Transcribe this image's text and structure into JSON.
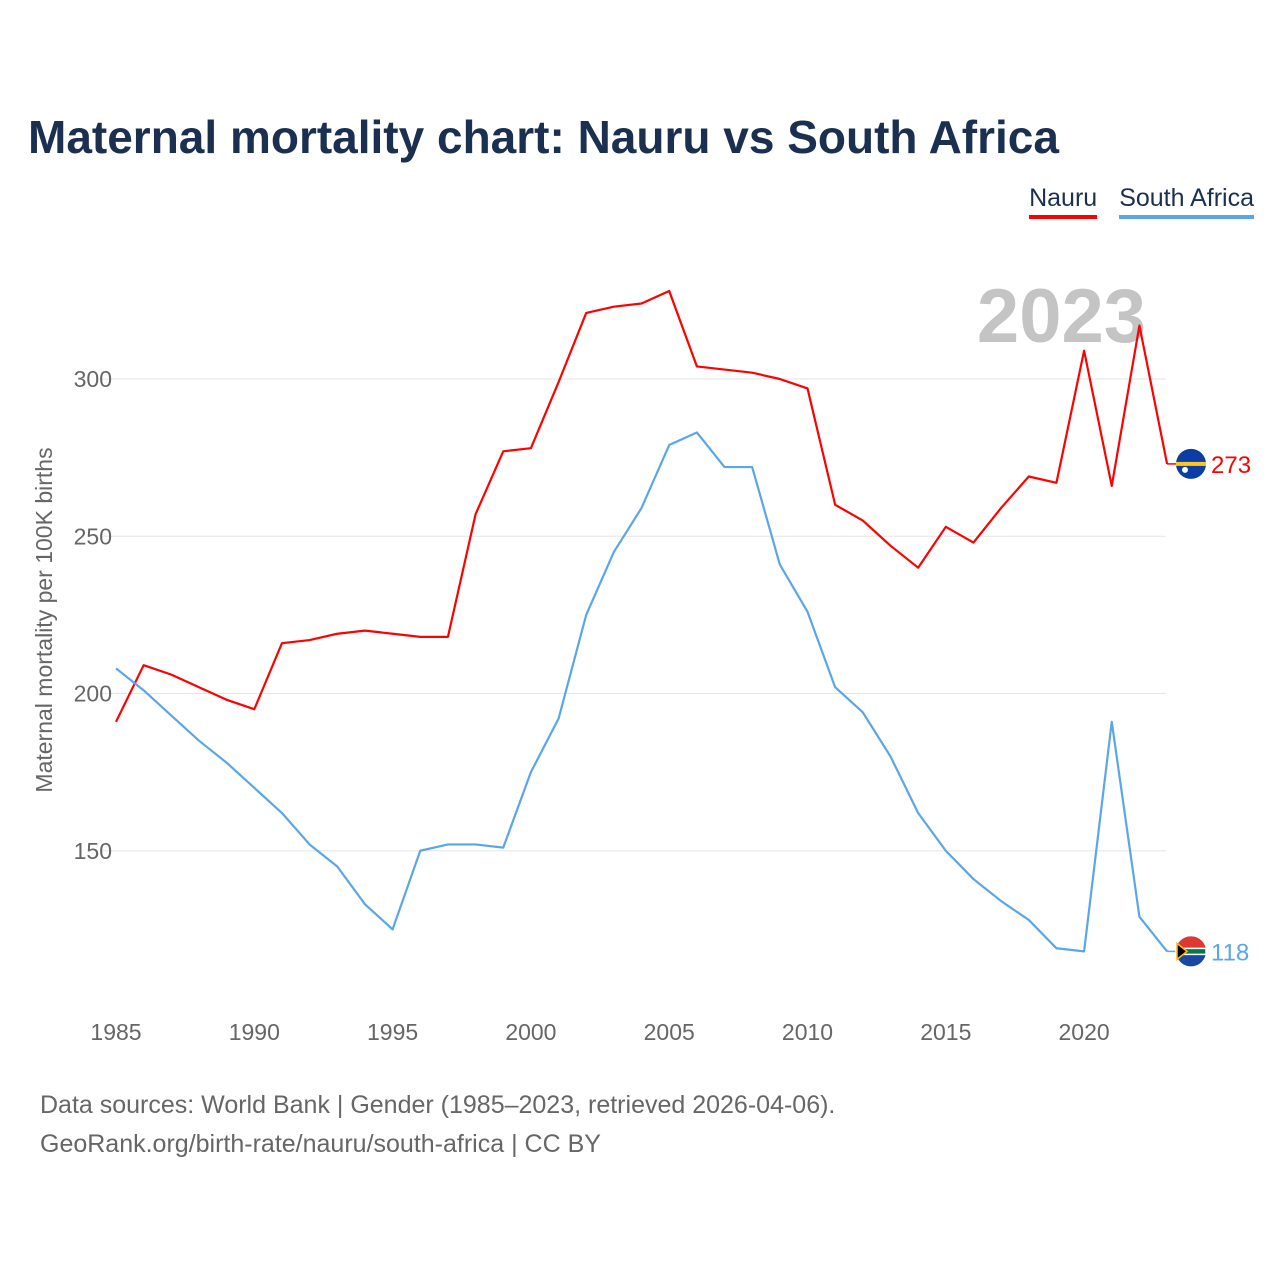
{
  "chart_data": {
    "type": "line",
    "title": "Maternal mortality chart: Nauru vs South Africa",
    "ylabel": "Maternal mortality per 100K births",
    "xlabel": "",
    "year_label": "2023",
    "x": [
      1985,
      1986,
      1987,
      1988,
      1989,
      1990,
      1991,
      1992,
      1993,
      1994,
      1995,
      1996,
      1997,
      1998,
      1999,
      2000,
      2001,
      2002,
      2003,
      2004,
      2005,
      2006,
      2007,
      2008,
      2009,
      2010,
      2011,
      2012,
      2013,
      2014,
      2015,
      2016,
      2017,
      2018,
      2019,
      2020,
      2021,
      2022,
      2023
    ],
    "series": [
      {
        "name": "Nauru",
        "color": "#ff0000",
        "end_label": "273",
        "values": [
          191,
          209,
          206,
          202,
          198,
          195,
          216,
          217,
          219,
          220,
          219,
          218,
          218,
          257,
          277,
          278,
          299,
          321,
          323,
          324,
          328,
          304,
          303,
          302,
          300,
          297,
          260,
          255,
          247,
          240,
          253,
          248,
          259,
          269,
          267,
          309,
          266,
          317,
          273
        ]
      },
      {
        "name": "South Africa",
        "color": "#5aa6e8",
        "end_label": "118",
        "values": [
          208,
          201,
          193,
          185,
          178,
          170,
          162,
          152,
          145,
          133,
          125,
          150,
          152,
          152,
          151,
          175,
          192,
          225,
          245,
          259,
          279,
          283,
          272,
          272,
          241,
          226,
          202,
          194,
          180,
          162,
          150,
          141,
          134,
          128,
          119,
          118,
          191,
          129,
          118
        ]
      }
    ],
    "xticks": [
      "1985",
      "1990",
      "1995",
      "2000",
      "2005",
      "2010",
      "2015",
      "2020"
    ],
    "yticks": [
      "150",
      "200",
      "250",
      "300"
    ],
    "ylim": [
      110,
      335
    ],
    "grid": true,
    "legend_position": "top-right"
  },
  "footer": {
    "line1": "Data sources: World Bank | Gender (1985–2023, retrieved 2026-04-06).",
    "line2": "GeoRank.org/birth-rate/nauru/south-africa | CC BY"
  }
}
